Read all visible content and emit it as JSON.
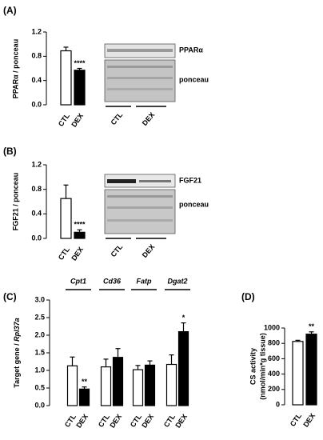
{
  "chart_data": [
    {
      "type": "bar",
      "panel": "(A)",
      "ylabel": "PPARα / ponceau",
      "ylim": [
        0,
        1.2
      ],
      "yticks": [
        {
          "value": 0,
          "label": "0.0"
        },
        0.4,
        0.8,
        1.2
      ],
      "series": [
        {
          "name": "CTL",
          "color": "#ffffff",
          "values": [
            0.89
          ],
          "errors": [
            0.06
          ]
        },
        {
          "name": "DEX",
          "color": "#000000",
          "values": [
            0.57
          ],
          "errors": [
            0.03
          ],
          "significance": [
            "****"
          ]
        }
      ],
      "blot": {
        "bands": [
          "PPARα",
          "ponceau"
        ],
        "lanes": [
          "CTL",
          "DEX"
        ]
      }
    },
    {
      "type": "bar",
      "panel": "(B)",
      "ylabel": "FGF21 / ponceau",
      "ylim": [
        0,
        1.2
      ],
      "yticks": [
        {
          "value": 0,
          "label": "0.0"
        },
        0.4,
        0.8,
        1.2
      ],
      "series": [
        {
          "name": "CTL",
          "color": "#ffffff",
          "values": [
            0.65
          ],
          "errors": [
            0.22
          ]
        },
        {
          "name": "DEX",
          "color": "#000000",
          "values": [
            0.1
          ],
          "errors": [
            0.04
          ],
          "significance": [
            "****"
          ]
        }
      ],
      "blot": {
        "bands": [
          "FGF21",
          "ponceau"
        ],
        "lanes": [
          "CTL",
          "DEX"
        ]
      }
    },
    {
      "type": "bar",
      "panel": "(C)",
      "ylabel": [
        "Target gene / ",
        "Rpl37a"
      ],
      "ylim": [
        0,
        3
      ],
      "yticks": [
        {
          "value": 0,
          "label": "0.0"
        },
        0.5,
        {
          "value": 1,
          "label": "1.0"
        },
        1.5,
        {
          "value": 2,
          "label": "2.0"
        },
        2.5,
        {
          "value": 3,
          "label": "3.0"
        }
      ],
      "categories": [
        "Cpt1",
        "Cd36",
        "Fatp",
        "Dgat2"
      ],
      "series": [
        {
          "name": "CTL",
          "color": "#ffffff",
          "values": [
            1.13,
            1.1,
            1.02,
            1.17
          ],
          "errors": [
            0.25,
            0.22,
            0.12,
            0.27
          ]
        },
        {
          "name": "DEX",
          "color": "#000000",
          "values": [
            0.47,
            1.37,
            1.15,
            2.1
          ],
          "errors": [
            0.06,
            0.25,
            0.12,
            0.25
          ],
          "significance": [
            "**",
            null,
            null,
            "*"
          ]
        }
      ]
    },
    {
      "type": "bar",
      "panel": "(D)",
      "ylabel": [
        "CS activity",
        "(nmol/min*g tissue)"
      ],
      "ylim": [
        0,
        1000
      ],
      "yticks": [
        0,
        200,
        400,
        600,
        800,
        1000
      ],
      "series": [
        {
          "name": "CTL",
          "color": "#ffffff",
          "values": [
            825
          ],
          "errors": [
            15
          ]
        },
        {
          "name": "DEX",
          "color": "#000000",
          "values": [
            920
          ],
          "errors": [
            30
          ],
          "significance": [
            "**"
          ]
        }
      ]
    }
  ]
}
